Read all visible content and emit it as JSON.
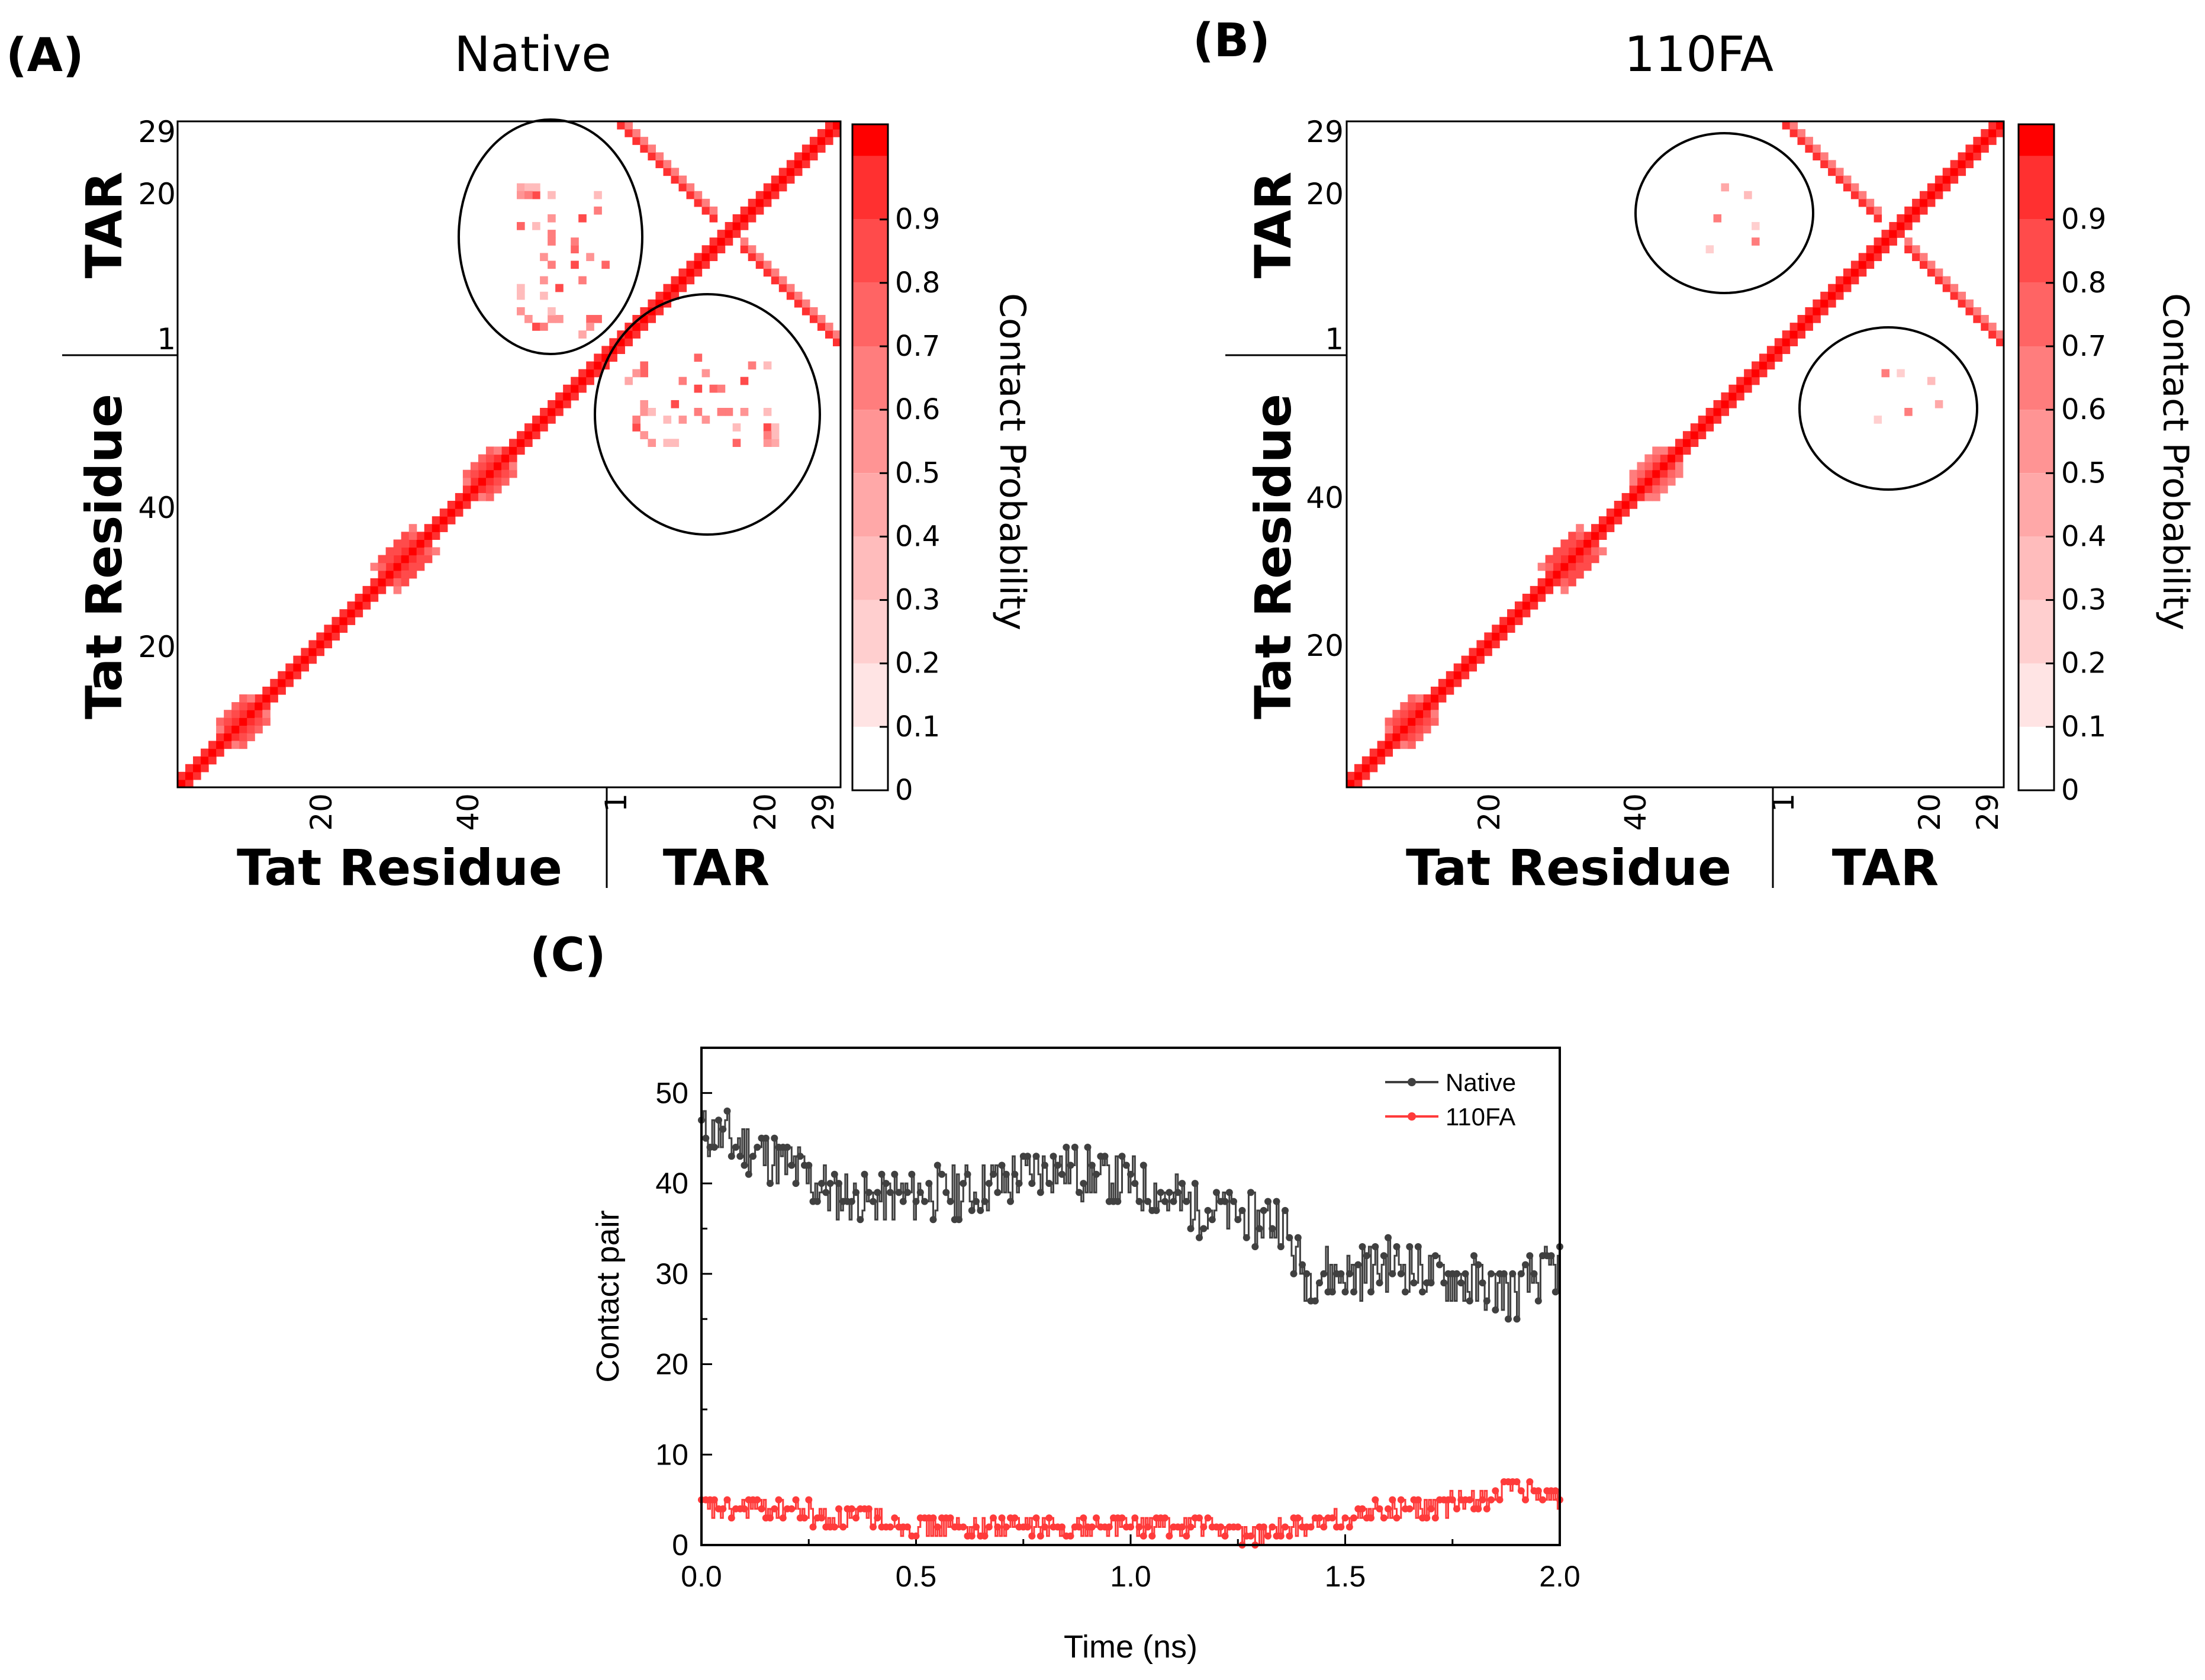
{
  "panels": {
    "A": {
      "label": "(A)",
      "title": "Native"
    },
    "B": {
      "label": "(B)",
      "title": "110FA"
    },
    "C": {
      "label": "(C)"
    }
  },
  "heatmap_axes": {
    "x_tat_label": "Tat Residue",
    "x_tar_label": "TAR",
    "y_tat_label": "Tat Residue",
    "y_tar_label": "TAR",
    "x_tat_ticks": [
      "20",
      "40"
    ],
    "x_tar_ticks": [
      "1",
      "20",
      "29"
    ],
    "y_tat_ticks": [
      "20",
      "40"
    ],
    "y_tar_ticks": [
      "1",
      "20",
      "29"
    ],
    "colorbar_label": "Contact Probability",
    "colorbar_ticks": [
      "0",
      "0.1",
      "0.2",
      "0.3",
      "0.4",
      "0.5",
      "0.6",
      "0.7",
      "0.8",
      "0.9"
    ],
    "colorbar_colors": [
      "#ffffff",
      "#ffe4e4",
      "#ffcfcf",
      "#ffbcbc",
      "#ffa8a8",
      "#ff9494",
      "#ff7d7d",
      "#ff6464",
      "#ff4b4b",
      "#ff3030",
      "#ff0000"
    ]
  },
  "chart_data": [
    {
      "type": "heatmap",
      "panel": "A",
      "title": "Native",
      "xlabel": "Tat Residue | TAR",
      "ylabel": "Tat Residue | TAR",
      "clim": [
        0,
        1
      ],
      "colorbar_label": "Contact Probability",
      "tat_residues": 57,
      "tar_residues": 29,
      "features": [
        {
          "region": "Tat-Tat",
          "kind": "diagonal",
          "from": 1,
          "to": 57,
          "value": 0.95
        },
        {
          "region": "Tat-Tat",
          "kind": "blob",
          "center": [
            9,
            9
          ],
          "radius": 4,
          "value": 0.9
        },
        {
          "region": "Tat-Tat",
          "kind": "blob",
          "center": [
            30,
            30
          ],
          "radius": 5,
          "value": 0.95
        },
        {
          "region": "Tat-Tat",
          "kind": "blob",
          "center": [
            41,
            41
          ],
          "radius": 4,
          "value": 0.9
        },
        {
          "region": "Tat-TAR",
          "kind": "scatter",
          "tat_range": [
            45,
            57
          ],
          "tar_range": [
            1,
            22
          ],
          "value": 0.8
        },
        {
          "region": "TAR-TAR",
          "kind": "diagonal",
          "from": 1,
          "to": 29,
          "value": 0.95
        },
        {
          "region": "TAR-TAR",
          "kind": "antidiagonal",
          "value": 0.85
        }
      ]
    },
    {
      "type": "heatmap",
      "panel": "B",
      "title": "110FA",
      "xlabel": "Tat Residue | TAR",
      "ylabel": "Tat Residue | TAR",
      "clim": [
        0,
        1
      ],
      "colorbar_label": "Contact Probability",
      "tat_residues": 57,
      "tar_residues": 29,
      "features": [
        {
          "region": "Tat-Tat",
          "kind": "diagonal",
          "from": 1,
          "to": 57,
          "value": 0.95
        },
        {
          "region": "Tat-Tat",
          "kind": "blob",
          "center": [
            9,
            9
          ],
          "radius": 4,
          "value": 0.9
        },
        {
          "region": "Tat-Tat",
          "kind": "blob",
          "center": [
            30,
            30
          ],
          "radius": 5,
          "value": 0.95
        },
        {
          "region": "Tat-Tat",
          "kind": "blob",
          "center": [
            41,
            41
          ],
          "radius": 4,
          "value": 0.85
        },
        {
          "region": "Tat-TAR",
          "kind": "scatter",
          "tat_range": [
            48,
            55
          ],
          "tar_range": [
            12,
            22
          ],
          "value": 0.6
        },
        {
          "region": "TAR-TAR",
          "kind": "diagonal",
          "from": 1,
          "to": 29,
          "value": 0.95
        },
        {
          "region": "TAR-TAR",
          "kind": "antidiagonal",
          "value": 0.85
        }
      ]
    },
    {
      "type": "line",
      "panel": "C",
      "xlabel": "Time (ns)",
      "ylabel": "Contact pair",
      "xlim": [
        0,
        2.0
      ],
      "ylim": [
        0,
        55
      ],
      "xticks": [
        "0.0",
        "0.5",
        "1.0",
        "1.5",
        "2.0"
      ],
      "yticks": [
        "0",
        "10",
        "20",
        "30",
        "40",
        "50"
      ],
      "legend_position": "top-right",
      "series": [
        {
          "name": "Native",
          "color": "#404040",
          "x": [
            0.0,
            0.1,
            0.2,
            0.3,
            0.4,
            0.5,
            0.6,
            0.7,
            0.8,
            0.9,
            1.0,
            1.1,
            1.2,
            1.3,
            1.35,
            1.4,
            1.5,
            1.6,
            1.7,
            1.8,
            1.9,
            2.0
          ],
          "y": [
            46,
            44,
            42,
            39,
            38,
            39,
            39,
            40,
            42,
            41,
            40,
            38,
            37,
            36,
            36,
            30,
            30,
            31,
            30,
            29,
            28,
            31
          ]
        },
        {
          "name": "110FA",
          "color": "#ff3b3b",
          "x": [
            0.0,
            0.1,
            0.2,
            0.3,
            0.4,
            0.5,
            0.6,
            0.7,
            0.8,
            0.9,
            1.0,
            1.1,
            1.2,
            1.3,
            1.4,
            1.5,
            1.6,
            1.7,
            1.8,
            1.9,
            2.0
          ],
          "y": [
            4,
            4,
            4,
            3,
            3,
            2,
            2,
            2,
            2,
            2,
            2,
            2,
            2,
            1,
            2,
            3,
            4,
            4,
            5,
            6,
            5
          ]
        }
      ]
    }
  ]
}
